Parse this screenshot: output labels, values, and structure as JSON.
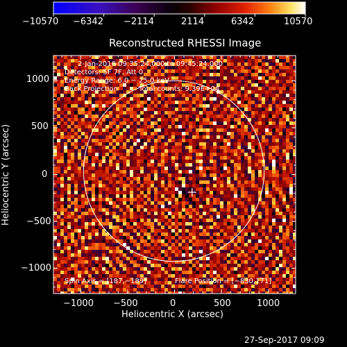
{
  "colorbar": {
    "tick_labels": [
      "−10570",
      "−6342",
      "−2114",
      "2114",
      "6342",
      "10570"
    ],
    "range": [
      -10570,
      10570
    ],
    "colors": [
      "#0000ff",
      "#4000a0",
      "#300030",
      "#000000",
      "#5a0000",
      "#b01000",
      "#f04000",
      "#ffa020",
      "#ffff80",
      "#ffffff"
    ]
  },
  "plot": {
    "title": "Reconstructed RHESSI Image",
    "xlabel": "Heliocentric X (arcsec)",
    "ylabel": "Heliocentric Y (arcsec)",
    "x_ticks": [
      "−1000",
      "−500",
      "0",
      "500",
      "1000"
    ],
    "y_ticks": [
      "1000",
      "500",
      "0",
      "−500",
      "−1000"
    ],
    "x_tick_values": [
      -1000,
      -500,
      0,
      500,
      1000
    ],
    "y_tick_values": [
      1000,
      500,
      0,
      -500,
      -1000
    ],
    "xlim": [
      -1290,
      1290
    ],
    "ylim": [
      -1270,
      1270
    ]
  },
  "annotations": {
    "line1": "2-Jan-2016 09:35:24.000 to 09:45:24.000",
    "line2": "Detectors: 5F 7F, Att 0",
    "line3": "Energy Range: 6.0 − 25.0 keV",
    "line4_method": "Back Projection",
    "line4_counts": "Total counts: 9.39E+04",
    "spin_axis": "Spin Axis = [187,−189]",
    "flare_position": "Flare Position = [−830,171]"
  },
  "marker": {
    "x": 187,
    "y": -189
  },
  "solar_limb_radius_arcsec": 962,
  "timestamp": "27-Sep-2017 09:09"
}
